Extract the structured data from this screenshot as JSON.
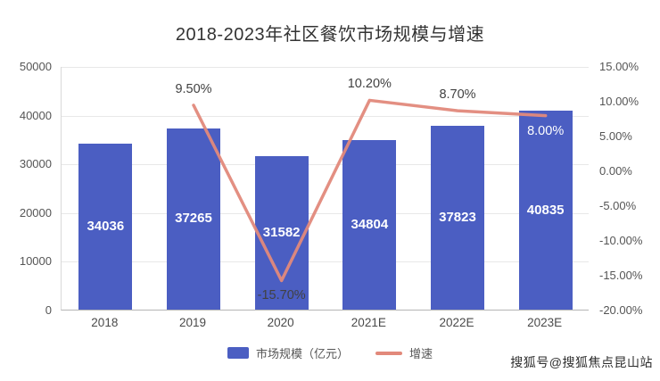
{
  "title": "2018-2023年社区餐饮市场规模与增速",
  "watermark": "搜狐号@搜狐焦点昆山站",
  "chart_data": {
    "type": "bar+line",
    "title": "2018-2023年社区餐饮市场规模与增速",
    "categories": [
      "2018",
      "2019",
      "2020",
      "2021E",
      "2022E",
      "2023E"
    ],
    "series": [
      {
        "name": "市场规模（亿元）",
        "type": "bar",
        "color": "#4b5ec2",
        "values": [
          34036,
          37265,
          31582,
          34804,
          37823,
          40835
        ]
      },
      {
        "name": "增速",
        "type": "line",
        "color": "#e2897b",
        "values": [
          null,
          9.5,
          -15.7,
          10.2,
          8.7,
          8.0
        ],
        "labels": [
          null,
          "9.50%",
          "-15.70%",
          "10.20%",
          "8.70%",
          "8.00%"
        ],
        "label_placements": [
          null,
          "above",
          "below",
          "above",
          "above",
          "below"
        ],
        "label_colors": [
          null,
          "#414141",
          "#414141",
          "#414141",
          "#414141",
          "#ffffff"
        ]
      }
    ],
    "left_axis": {
      "min": 0,
      "max": 50000,
      "ticks": [
        "50000",
        "40000",
        "30000",
        "20000",
        "10000",
        "0"
      ]
    },
    "right_axis": {
      "min": -20,
      "max": 15,
      "ticks": [
        "15.00%",
        "10.00%",
        "5.00%",
        "0.00%",
        "-5.00%",
        "-10.00%",
        "-15.00%",
        "-20.00%"
      ]
    },
    "legend": [
      {
        "label": "市场规模（亿元）",
        "color": "#4b5ec2",
        "type": "bar"
      },
      {
        "label": "增速",
        "color": "#e2897b",
        "type": "line"
      }
    ],
    "grid": true,
    "legend_position": "bottom"
  }
}
